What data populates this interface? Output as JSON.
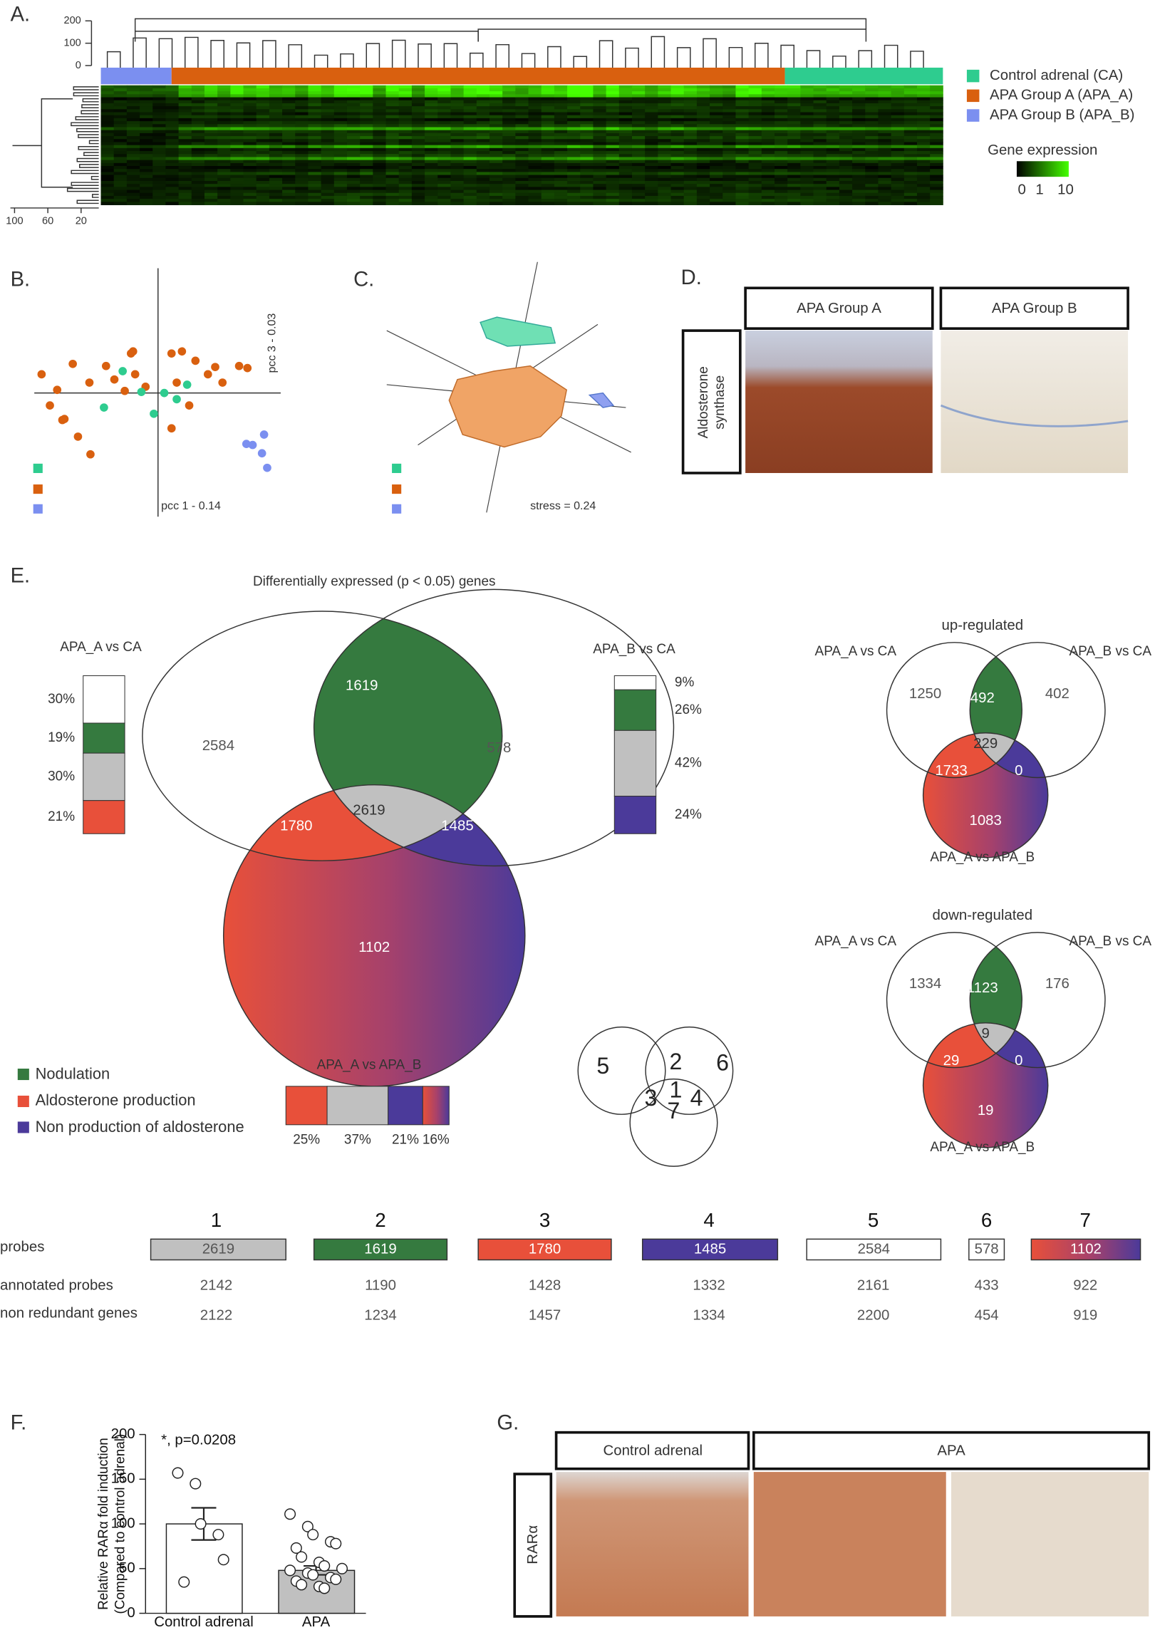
{
  "A": {
    "label": "A.",
    "top_ticks": [
      0,
      100,
      200
    ],
    "left_ticks": [
      100,
      60,
      20
    ],
    "legend": [
      "Control adrenal (CA)",
      "APA Group A (APA_A)",
      "APA Group B (APA_B)"
    ],
    "colors": [
      "#2ecc8f",
      "#d9600f",
      "#7b8ff0"
    ],
    "expression_title": "Gene expression",
    "expression_ticks": [
      0,
      1,
      10
    ]
  },
  "B": {
    "label": "B.",
    "y_axis": "pcc 3 - 0.03",
    "x_axis": "pcc 1 - 0.14"
  },
  "C": {
    "label": "C.",
    "stress": "stress = 0.24"
  },
  "D": {
    "label": "D.",
    "columns": [
      "APA Group A",
      "APA Group B"
    ],
    "row": [
      "Aldosterone",
      "synthase"
    ]
  },
  "E": {
    "label": "E.",
    "title": "Differentially expressed (p < 0.05) genes",
    "sets": [
      "APA_A vs CA",
      "APA_B vs CA",
      "APA_A vs APA_B"
    ],
    "regions": [
      2584,
      1619,
      578,
      1780,
      2619,
      1485,
      1102
    ],
    "left_bar": {
      "values": [
        30,
        19,
        30,
        21
      ],
      "value_labels": [
        "30%",
        "19%",
        "30%",
        "21%"
      ]
    },
    "right_bar": {
      "values": [
        9,
        26,
        42,
        24
      ],
      "value_labels": [
        "9%",
        "26%",
        "42%",
        "24%"
      ]
    },
    "bottom_bar": {
      "values": [
        25,
        37,
        21,
        16
      ],
      "value_labels": [
        "25%",
        "37%",
        "21%",
        "16%"
      ]
    },
    "legend": [
      "Nodulation",
      "Aldosterone production",
      "Non production of aldosterone"
    ],
    "key": [
      5,
      2,
      6,
      3,
      1,
      4,
      7
    ],
    "up": {
      "title": "up-regulated",
      "sets": [
        "APA_A vs CA",
        "APA_B vs CA",
        "APA_A vs APA_B"
      ],
      "regions": [
        1250,
        492,
        402,
        229,
        1733,
        0,
        1083
      ]
    },
    "down": {
      "title": "down-regulated",
      "sets": [
        "APA_A vs CA",
        "APA_B vs CA",
        "APA_A vs APA_B"
      ],
      "regions": [
        1334,
        1123,
        176,
        9,
        29,
        0,
        19
      ]
    }
  },
  "table": {
    "columns": [
      1,
      2,
      3,
      4,
      5,
      6,
      7
    ],
    "row_labels": [
      "probes",
      "annotated probes",
      "non redundant genes"
    ],
    "rows": [
      [
        2619,
        1619,
        1780,
        1485,
        2584,
        578,
        1102
      ],
      [
        2142,
        1190,
        1428,
        1332,
        2161,
        433,
        922
      ],
      [
        2122,
        1234,
        1457,
        1334,
        2200,
        454,
        919
      ]
    ]
  },
  "F": {
    "label": "F.",
    "chart": {
      "type": "bar",
      "ylabel": [
        "Relative RARα fold induction",
        "(Compared to control adrenal)"
      ],
      "annotation": "*, p=0.0208",
      "categories": [
        "Control adrenal",
        "APA"
      ],
      "values": [
        100,
        48
      ],
      "errors": [
        18,
        5
      ],
      "points": [
        [
          157,
          145,
          100,
          88,
          60,
          35
        ],
        [
          111,
          97,
          88,
          80,
          78,
          73,
          63,
          57,
          53,
          50,
          48,
          45,
          43,
          40,
          38,
          36,
          32,
          30,
          28
        ]
      ],
      "ylim": [
        0,
        200
      ],
      "yticks": [
        0,
        50,
        100,
        150,
        200
      ]
    }
  },
  "G": {
    "label": "G.",
    "columns": [
      "Control adrenal",
      "APA"
    ],
    "row": "RARα"
  }
}
